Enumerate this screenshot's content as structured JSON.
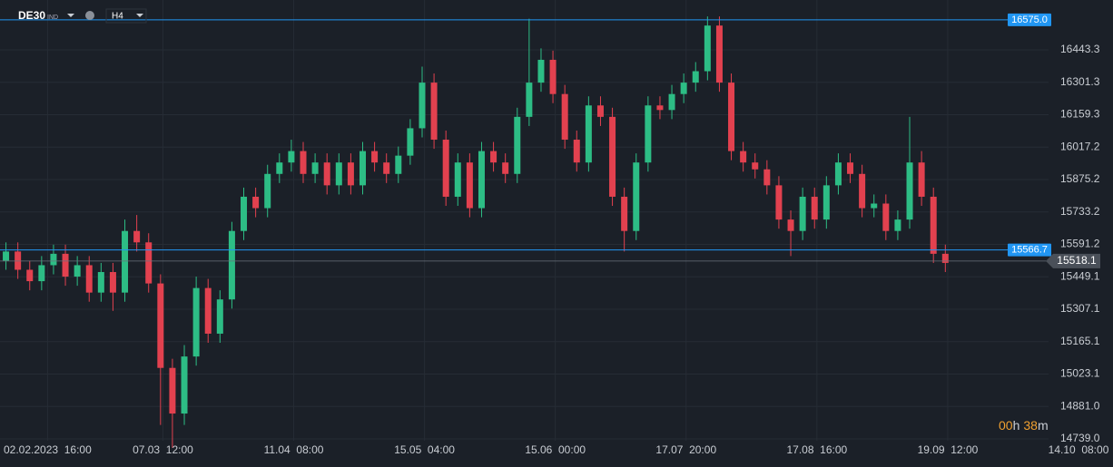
{
  "header": {
    "symbol": "DE30",
    "market": "IND",
    "timeframe": "H4"
  },
  "timer": [
    "00",
    "h",
    "38",
    "m"
  ],
  "chart_data": {
    "type": "candlestick",
    "up_color": "#2dbd85",
    "down_color": "#e2414f",
    "grid": true,
    "x": [
      0,
      1,
      2,
      3,
      4,
      5,
      6,
      7,
      8,
      9,
      10,
      11,
      12,
      13,
      14,
      15,
      16,
      17,
      18,
      19,
      20,
      21,
      22,
      23,
      24,
      25,
      26,
      27,
      28,
      29,
      30,
      31,
      32,
      33,
      34,
      35,
      36,
      37,
      38,
      39,
      40,
      41,
      42,
      43,
      44,
      45,
      46,
      47,
      48,
      49,
      50,
      51,
      52,
      53,
      54,
      55,
      56,
      57,
      58,
      59,
      60,
      61,
      62,
      63,
      64,
      65,
      66,
      67,
      68,
      69,
      70,
      71,
      72,
      73,
      74,
      75,
      76,
      77,
      78,
      79
    ],
    "open": [
      15520,
      15560,
      15480,
      15430,
      15500,
      15550,
      15450,
      15500,
      15380,
      15470,
      15380,
      15650,
      15600,
      15420,
      15050,
      14850,
      15100,
      15400,
      15200,
      15350,
      15650,
      15800,
      15750,
      15900,
      15950,
      16000,
      15900,
      15950,
      15850,
      15950,
      15850,
      16000,
      15950,
      15900,
      15980,
      16100,
      16300,
      16050,
      15800,
      15950,
      15750,
      16000,
      15950,
      15900,
      16150,
      16300,
      16400,
      16250,
      16050,
      15950,
      16200,
      16150,
      15800,
      15650,
      15950,
      16200,
      16180,
      16250,
      16300,
      16350,
      16550,
      16300,
      16000,
      15950,
      15920,
      15850,
      15700,
      15650,
      15800,
      15700,
      15850,
      15950,
      15900,
      15750,
      15770,
      15650,
      15700,
      15950,
      15800,
      15550
    ],
    "high": [
      15600,
      15600,
      15520,
      15540,
      15590,
      15590,
      15540,
      15540,
      15510,
      15510,
      15700,
      15720,
      15640,
      15460,
      15090,
      15150,
      15450,
      15440,
      15390,
      15690,
      15840,
      15840,
      15940,
      15990,
      16050,
      16040,
      15990,
      15990,
      15990,
      15990,
      16040,
      16040,
      15990,
      16020,
      16140,
      16370,
      16340,
      16090,
      15990,
      15990,
      16040,
      16040,
      15990,
      16190,
      16580,
      16450,
      16440,
      16290,
      16090,
      16240,
      16240,
      16190,
      15840,
      15990,
      16240,
      16240,
      16290,
      16340,
      16390,
      16590,
      16590,
      16340,
      16040,
      15990,
      15960,
      15890,
      15740,
      15840,
      15840,
      15890,
      15990,
      15990,
      15940,
      15810,
      15810,
      15740,
      16150,
      16000,
      15840,
      15590
    ],
    "low": [
      15480,
      15440,
      15390,
      15390,
      15460,
      15410,
      15410,
      15340,
      15340,
      15300,
      15340,
      15560,
      15380,
      14800,
      14700,
      14800,
      15060,
      15160,
      15160,
      15310,
      15610,
      15710,
      15710,
      15860,
      15910,
      15860,
      15860,
      15810,
      15810,
      15810,
      15810,
      15910,
      15860,
      15860,
      15940,
      16060,
      16010,
      15760,
      15760,
      15710,
      15710,
      15910,
      15860,
      15860,
      16110,
      16260,
      16210,
      16010,
      15910,
      15910,
      16110,
      15760,
      15560,
      15610,
      15910,
      16140,
      16140,
      16210,
      16260,
      16310,
      16260,
      15960,
      15910,
      15880,
      15810,
      15660,
      15540,
      15610,
      15660,
      15660,
      15810,
      15860,
      15710,
      15710,
      15610,
      15610,
      15660,
      15760,
      15510,
      15470
    ],
    "close": [
      15560,
      15480,
      15430,
      15500,
      15550,
      15450,
      15500,
      15380,
      15470,
      15380,
      15650,
      15600,
      15420,
      15050,
      14850,
      15100,
      15400,
      15200,
      15350,
      15650,
      15800,
      15750,
      15900,
      15950,
      16000,
      15900,
      15950,
      15850,
      15950,
      15850,
      16000,
      15950,
      15900,
      15980,
      16100,
      16300,
      16050,
      15800,
      15950,
      15750,
      16000,
      15950,
      15900,
      16150,
      16300,
      16400,
      16250,
      16050,
      15950,
      16200,
      16150,
      15800,
      15650,
      15950,
      16200,
      16180,
      16250,
      16300,
      16350,
      16550,
      16300,
      16000,
      15950,
      15920,
      15850,
      15700,
      15650,
      15800,
      15700,
      15850,
      15950,
      15900,
      15750,
      15770,
      15650,
      15700,
      15950,
      15800,
      15550,
      15510
    ],
    "xlim": [
      -0.5,
      93.1
    ],
    "xticks": [
      {
        "value": 3.5,
        "label": "02.02.2023  16:00"
      },
      {
        "value": 13.2,
        "label": "07.03  12:00"
      },
      {
        "value": 24.2,
        "label": "11.04  08:00"
      },
      {
        "value": 35.2,
        "label": "15.05  04:00"
      },
      {
        "value": 46.2,
        "label": "15.06  00:00"
      },
      {
        "value": 57.2,
        "label": "17.07  20:00"
      },
      {
        "value": 68.2,
        "label": "17.08  16:00"
      },
      {
        "value": 79.2,
        "label": "19.09  12:00"
      },
      {
        "value": 90.2,
        "label": "14.10  08:00"
      }
    ],
    "ylim": [
      14731,
      16662
    ],
    "yticks": [
      16443.3,
      16301.3,
      16159.3,
      16017.2,
      15875.2,
      15733.2,
      15591.2,
      15449.1,
      15307.1,
      15165.1,
      15023.1,
      {
        "value": 14881,
        "label": "14881.0"
      },
      {
        "value": 14739,
        "label": "14739.0"
      }
    ],
    "levels": [
      {
        "value": 16575,
        "label": "16575.0",
        "color": "#2196f3"
      },
      {
        "value": 15566.7,
        "label": "15566.7",
        "color": "#2196f3"
      }
    ],
    "last_price": 15518.1
  }
}
